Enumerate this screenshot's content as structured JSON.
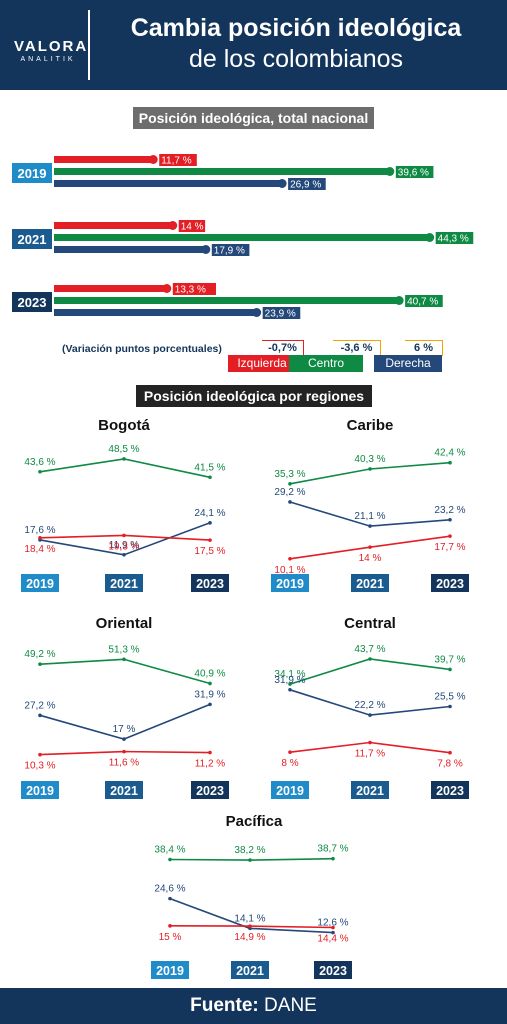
{
  "header": {
    "logo_main": "VALORA",
    "logo_sub": "ANALITIK",
    "title_line1": "Cambia posición ideológica",
    "title_line2": "de los colombianos"
  },
  "colors": {
    "izquierda": "#e31e24",
    "centro": "#0e8a44",
    "derecha": "#24487a",
    "navy": "#13355b",
    "year_2019": "#1f8bc9",
    "year_2021": "#1a5c8f",
    "year_2023": "#13355b"
  },
  "sections": {
    "national_title": "Posición ideológica, total nacional",
    "regions_title": "Posición ideológica por regiones"
  },
  "legend": {
    "note": "(Variación puntos porcentuales)",
    "items": [
      {
        "label": "Izquierda",
        "change": "-0,7%"
      },
      {
        "label": "Centro",
        "change": "-3,6 %"
      },
      {
        "label": "Derecha",
        "change": "6 %"
      }
    ]
  },
  "footer": {
    "prefix": "Fuente:",
    "source": "DANE"
  },
  "chart_data": [
    {
      "type": "bar",
      "title": "Posición ideológica, total nacional",
      "orientation": "horizontal",
      "categories": [
        "2019",
        "2021",
        "2023"
      ],
      "series": [
        {
          "name": "Izquierda",
          "values": [
            11.7,
            14.0,
            13.3
          ],
          "labels": [
            "11,7 %",
            "14 %",
            "13,3  %"
          ]
        },
        {
          "name": "Centro",
          "values": [
            39.6,
            44.3,
            40.7
          ],
          "labels": [
            "39,6 %",
            "44,3 %",
            "40,7 %"
          ]
        },
        {
          "name": "Derecha",
          "values": [
            26.9,
            17.9,
            23.9
          ],
          "labels": [
            "26,9 %",
            "17,9 %",
            "23,9 %"
          ]
        }
      ]
    },
    {
      "type": "line",
      "title": "Bogotá",
      "x": [
        "2019",
        "2021",
        "2023"
      ],
      "series": [
        {
          "name": "Centro",
          "values": [
            43.6,
            48.5,
            41.5
          ],
          "labels": [
            "43,6 %",
            "48,5 %",
            "41,5 %"
          ]
        },
        {
          "name": "Derecha",
          "values": [
            17.6,
            11.9,
            24.1
          ],
          "labels": [
            "17,6 %",
            "11,9 %",
            "24,1 %"
          ]
        },
        {
          "name": "Izquierda",
          "values": [
            18.4,
            19.3,
            17.5
          ],
          "labels": [
            "18,4 %",
            "19,3 %",
            "17,5 %"
          ]
        }
      ]
    },
    {
      "type": "line",
      "title": "Caribe",
      "x": [
        "2019",
        "2021",
        "2023"
      ],
      "series": [
        {
          "name": "Centro",
          "values": [
            35.3,
            40.3,
            42.4
          ],
          "labels": [
            "35,3 %",
            "40,3 %",
            "42,4 %"
          ]
        },
        {
          "name": "Derecha",
          "values": [
            29.2,
            21.1,
            23.2
          ],
          "labels": [
            "29,2 %",
            "21,1 %",
            "23,2 %"
          ]
        },
        {
          "name": "Izquierda",
          "values": [
            10.1,
            14.0,
            17.7
          ],
          "labels": [
            "10,1 %",
            "14 %",
            "17,7 %"
          ]
        }
      ]
    },
    {
      "type": "line",
      "title": "Oriental",
      "x": [
        "2019",
        "2021",
        "2023"
      ],
      "series": [
        {
          "name": "Centro",
          "values": [
            49.2,
            51.3,
            40.9
          ],
          "labels": [
            "49,2 %",
            "51,3 %",
            "40,9 %"
          ]
        },
        {
          "name": "Derecha",
          "values": [
            27.2,
            17.0,
            31.9
          ],
          "labels": [
            "27,2 %",
            "17 %",
            "31,9 %"
          ]
        },
        {
          "name": "Izquierda",
          "values": [
            10.3,
            11.6,
            11.2
          ],
          "labels": [
            "10,3 %",
            "11,6 %",
            "11,2 %"
          ]
        }
      ]
    },
    {
      "type": "line",
      "title": "Central",
      "x": [
        "2019",
        "2021",
        "2023"
      ],
      "series": [
        {
          "name": "Centro",
          "values": [
            34.1,
            43.7,
            39.7
          ],
          "labels": [
            "34,1 %",
            "43,7 %",
            "39,7 %"
          ]
        },
        {
          "name": "Derecha",
          "values": [
            31.9,
            22.2,
            25.5
          ],
          "labels": [
            "31,9 %",
            "22,2 %",
            "25,5 %"
          ]
        },
        {
          "name": "Izquierda",
          "values": [
            8.0,
            11.7,
            7.8
          ],
          "labels": [
            "8 %",
            "11,7 %",
            "7,8 %"
          ]
        }
      ]
    },
    {
      "type": "line",
      "title": "Pacífica",
      "x": [
        "2019",
        "2021",
        "2023"
      ],
      "series": [
        {
          "name": "Centro",
          "values": [
            38.4,
            38.2,
            38.7
          ],
          "labels": [
            "38,4 %",
            "38,2 %",
            "38,7 %"
          ]
        },
        {
          "name": "Derecha",
          "values": [
            24.6,
            14.1,
            12.6
          ],
          "labels": [
            "24,6 %",
            "14,1 %",
            "12,6 %"
          ]
        },
        {
          "name": "Izquierda",
          "values": [
            15.0,
            14.9,
            14.4
          ],
          "labels": [
            "15 %",
            "14,9 %",
            "14,4 %"
          ]
        }
      ]
    }
  ]
}
